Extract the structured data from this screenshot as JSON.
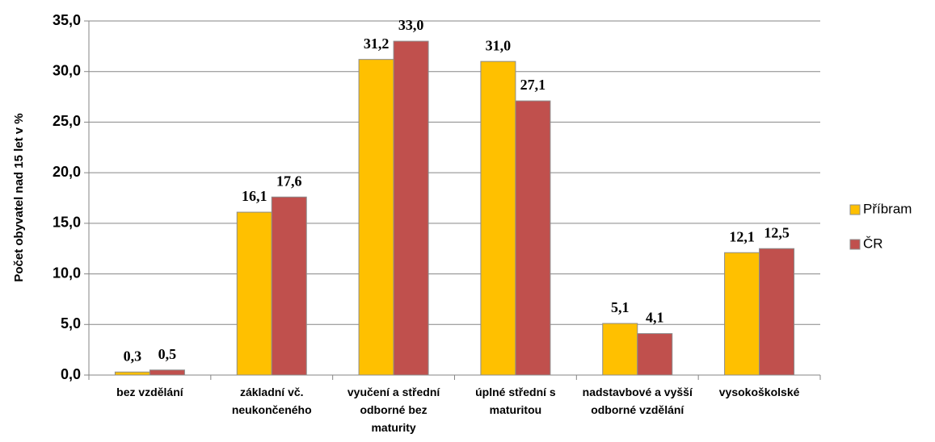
{
  "chart_data": {
    "type": "bar",
    "y_label": "Počet obyvatel nad 15 let v %",
    "categories": [
      "bez vzdělání",
      "základní vč. neukončeného",
      "vyučení a střední odborné bez maturity",
      "úplné střední s maturitou",
      "nadstavbové a vyšší odborné vzdělání",
      "vysokoškolské"
    ],
    "series": [
      {
        "name": "Příbram",
        "color": "#FFC000",
        "values": [
          0.3,
          16.1,
          31.2,
          31.0,
          5.1,
          12.1
        ],
        "value_labels": [
          "0,3",
          "16,1",
          "31,2",
          "31,0",
          "5,1",
          "12,1"
        ]
      },
      {
        "name": "ČR",
        "color": "#C0504D",
        "values": [
          0.5,
          17.6,
          33.0,
          27.1,
          4.1,
          12.5
        ],
        "value_labels": [
          "0,5",
          "17,6",
          "33,0",
          "27,1",
          "4,1",
          "12,5"
        ]
      }
    ],
    "ylim": [
      0,
      35
    ],
    "yticks": [
      {
        "value": 0,
        "label": "0,0"
      },
      {
        "value": 5,
        "label": "5,0"
      },
      {
        "value": 10,
        "label": "10,0"
      },
      {
        "value": 15,
        "label": "15,0"
      },
      {
        "value": 20,
        "label": "20,0"
      },
      {
        "value": 25,
        "label": "25,0"
      },
      {
        "value": 30,
        "label": "30,0"
      },
      {
        "value": 35,
        "label": "35,0"
      }
    ],
    "grid": true,
    "legend": "right"
  }
}
